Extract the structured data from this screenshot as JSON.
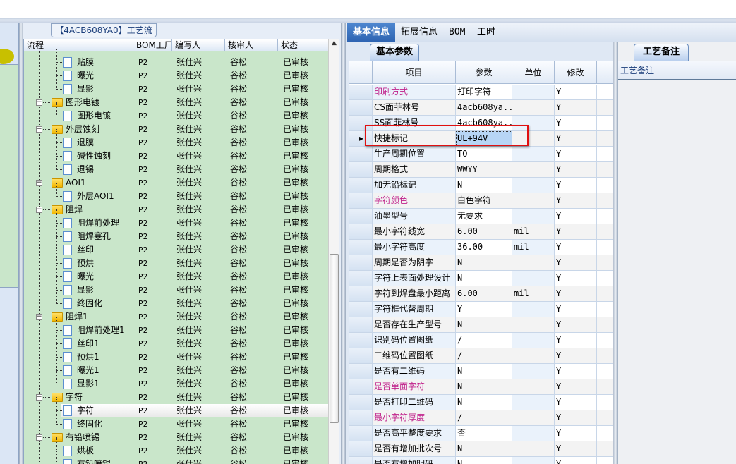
{
  "left_panel": {
    "title": "【4ACB608YA0】工艺流程",
    "columns": [
      "流程",
      "BOM工厂",
      "编写人",
      "核审人",
      "状态"
    ],
    "rows": [
      {
        "type": "child",
        "name": "贴膜",
        "bom": "P2",
        "author": "张仕兴",
        "reviewer": "谷松",
        "status": "已审核"
      },
      {
        "type": "child",
        "name": "曝光",
        "bom": "P2",
        "author": "张仕兴",
        "reviewer": "谷松",
        "status": "已审核"
      },
      {
        "type": "child",
        "name": "显影",
        "bom": "P2",
        "author": "张仕兴",
        "reviewer": "谷松",
        "status": "已审核"
      },
      {
        "type": "folder",
        "name": "图形电镀",
        "bom": "P2",
        "author": "张仕兴",
        "reviewer": "谷松",
        "status": "已审核"
      },
      {
        "type": "child",
        "name": "图形电镀",
        "bom": "P2",
        "author": "张仕兴",
        "reviewer": "谷松",
        "status": "已审核"
      },
      {
        "type": "folder",
        "name": "外层蚀刻",
        "bom": "P2",
        "author": "张仕兴",
        "reviewer": "谷松",
        "status": "已审核"
      },
      {
        "type": "child",
        "name": "退膜",
        "bom": "P2",
        "author": "张仕兴",
        "reviewer": "谷松",
        "status": "已审核"
      },
      {
        "type": "child",
        "name": "碱性蚀刻",
        "bom": "P2",
        "author": "张仕兴",
        "reviewer": "谷松",
        "status": "已审核"
      },
      {
        "type": "child",
        "name": "退锡",
        "bom": "P2",
        "author": "张仕兴",
        "reviewer": "谷松",
        "status": "已审核"
      },
      {
        "type": "folder",
        "name": "AOI1",
        "bom": "P2",
        "author": "张仕兴",
        "reviewer": "谷松",
        "status": "已审核"
      },
      {
        "type": "child",
        "name": "外层AOI1",
        "bom": "P2",
        "author": "张仕兴",
        "reviewer": "谷松",
        "status": "已审核"
      },
      {
        "type": "folder",
        "name": "阻焊",
        "bom": "P2",
        "author": "张仕兴",
        "reviewer": "谷松",
        "status": "已审核"
      },
      {
        "type": "child",
        "name": "阻焊前处理",
        "bom": "P2",
        "author": "张仕兴",
        "reviewer": "谷松",
        "status": "已审核"
      },
      {
        "type": "child",
        "name": "阻焊塞孔",
        "bom": "P2",
        "author": "张仕兴",
        "reviewer": "谷松",
        "status": "已审核"
      },
      {
        "type": "child",
        "name": "丝印",
        "bom": "P2",
        "author": "张仕兴",
        "reviewer": "谷松",
        "status": "已审核"
      },
      {
        "type": "child",
        "name": "预烘",
        "bom": "P2",
        "author": "张仕兴",
        "reviewer": "谷松",
        "status": "已审核"
      },
      {
        "type": "child",
        "name": "曝光",
        "bom": "P2",
        "author": "张仕兴",
        "reviewer": "谷松",
        "status": "已审核"
      },
      {
        "type": "child",
        "name": "显影",
        "bom": "P2",
        "author": "张仕兴",
        "reviewer": "谷松",
        "status": "已审核"
      },
      {
        "type": "child",
        "name": "终固化",
        "bom": "P2",
        "author": "张仕兴",
        "reviewer": "谷松",
        "status": "已审核"
      },
      {
        "type": "folder",
        "name": "阻焊1",
        "bom": "P2",
        "author": "张仕兴",
        "reviewer": "谷松",
        "status": "已审核"
      },
      {
        "type": "child",
        "name": "阻焊前处理1",
        "bom": "P2",
        "author": "张仕兴",
        "reviewer": "谷松",
        "status": "已审核"
      },
      {
        "type": "child",
        "name": "丝印1",
        "bom": "P2",
        "author": "张仕兴",
        "reviewer": "谷松",
        "status": "已审核"
      },
      {
        "type": "child",
        "name": "预烘1",
        "bom": "P2",
        "author": "张仕兴",
        "reviewer": "谷松",
        "status": "已审核"
      },
      {
        "type": "child",
        "name": "曝光1",
        "bom": "P2",
        "author": "张仕兴",
        "reviewer": "谷松",
        "status": "已审核"
      },
      {
        "type": "child",
        "name": "显影1",
        "bom": "P2",
        "author": "张仕兴",
        "reviewer": "谷松",
        "status": "已审核"
      },
      {
        "type": "folder",
        "name": "字符",
        "bom": "P2",
        "author": "张仕兴",
        "reviewer": "谷松",
        "status": "已审核"
      },
      {
        "type": "child",
        "name": "字符",
        "bom": "P2",
        "author": "张仕兴",
        "reviewer": "谷松",
        "status": "已审核",
        "selected": true
      },
      {
        "type": "child",
        "name": "终固化",
        "bom": "P2",
        "author": "张仕兴",
        "reviewer": "谷松",
        "status": "已审核"
      },
      {
        "type": "folder",
        "name": "有铅喷锡",
        "bom": "P2",
        "author": "张仕兴",
        "reviewer": "谷松",
        "status": "已审核"
      },
      {
        "type": "child",
        "name": "烘板",
        "bom": "P2",
        "author": "张仕兴",
        "reviewer": "谷松",
        "status": "已审核"
      },
      {
        "type": "child",
        "name": "有铅喷锡",
        "bom": "P2",
        "author": "张仕兴",
        "reviewer": "谷松",
        "status": "已审核"
      }
    ]
  },
  "tabs": [
    {
      "label": "基本信息",
      "active": true
    },
    {
      "label": "拓展信息"
    },
    {
      "label": "BOM"
    },
    {
      "label": "工时"
    }
  ],
  "subtab": "基本参数",
  "grid": {
    "columns": [
      "项目",
      "参数",
      "单位",
      "修改"
    ],
    "rows": [
      {
        "item": "印刷方式",
        "value": "打印字符",
        "unit": "",
        "mod": "Y",
        "pink": true
      },
      {
        "item": "CS面菲林号",
        "value": "4acb608ya...",
        "unit": "",
        "mod": "Y"
      },
      {
        "item": "SS面菲林号",
        "value": "4acb608ya...",
        "unit": "",
        "mod": "Y"
      },
      {
        "item": "快捷标记",
        "value": "UL+94V",
        "unit": "",
        "mod": "Y",
        "current": true
      },
      {
        "item": "生产周期位置",
        "value": "TO",
        "unit": "",
        "mod": "Y"
      },
      {
        "item": "周期格式",
        "value": "WWYY",
        "unit": "",
        "mod": "Y"
      },
      {
        "item": "加无铅标记",
        "value": "N",
        "unit": "",
        "mod": "Y"
      },
      {
        "item": "字符颜色",
        "value": "白色字符",
        "unit": "",
        "mod": "Y",
        "pink": true
      },
      {
        "item": "油墨型号",
        "value": "无要求",
        "unit": "",
        "mod": "Y"
      },
      {
        "item": "最小字符线宽",
        "value": "6.00",
        "unit": "mil",
        "mod": "Y"
      },
      {
        "item": "最小字符高度",
        "value": "36.00",
        "unit": "mil",
        "mod": "Y"
      },
      {
        "item": "周期是否为阴字",
        "value": "N",
        "unit": "",
        "mod": "Y"
      },
      {
        "item": "字符上表面处理设计",
        "value": "N",
        "unit": "",
        "mod": "Y"
      },
      {
        "item": "字符到焊盘最小距离",
        "value": "6.00",
        "unit": "mil",
        "mod": "Y"
      },
      {
        "item": "字符框代替周期",
        "value": "Y",
        "unit": "",
        "mod": "Y"
      },
      {
        "item": "是否存在生产型号",
        "value": "N",
        "unit": "",
        "mod": "Y"
      },
      {
        "item": "识别码位置图纸",
        "value": "/",
        "unit": "",
        "mod": "Y"
      },
      {
        "item": "二维码位置图纸",
        "value": "/",
        "unit": "",
        "mod": "Y"
      },
      {
        "item": "是否有二维码",
        "value": "N",
        "unit": "",
        "mod": "Y"
      },
      {
        "item": "是否单面字符",
        "value": "N",
        "unit": "",
        "mod": "Y",
        "pink": true
      },
      {
        "item": "是否打印二维码",
        "value": "N",
        "unit": "",
        "mod": "Y"
      },
      {
        "item": "最小字符厚度",
        "value": "/",
        "unit": "",
        "mod": "Y",
        "pink": true
      },
      {
        "item": "是否高平整度要求",
        "value": "否",
        "unit": "",
        "mod": "Y"
      },
      {
        "item": "是否有增加批次号",
        "value": "N",
        "unit": "",
        "mod": "Y"
      },
      {
        "item": "是否有增加明码",
        "value": "N",
        "unit": "",
        "mod": "Y"
      }
    ]
  },
  "notes": {
    "tab": "工艺备注",
    "header": "工艺备注"
  },
  "colors": {
    "tree_bg": "#c9e6ca",
    "accent": "#2e64b2",
    "pink": "#c0208a",
    "highlight": "#e01010"
  }
}
